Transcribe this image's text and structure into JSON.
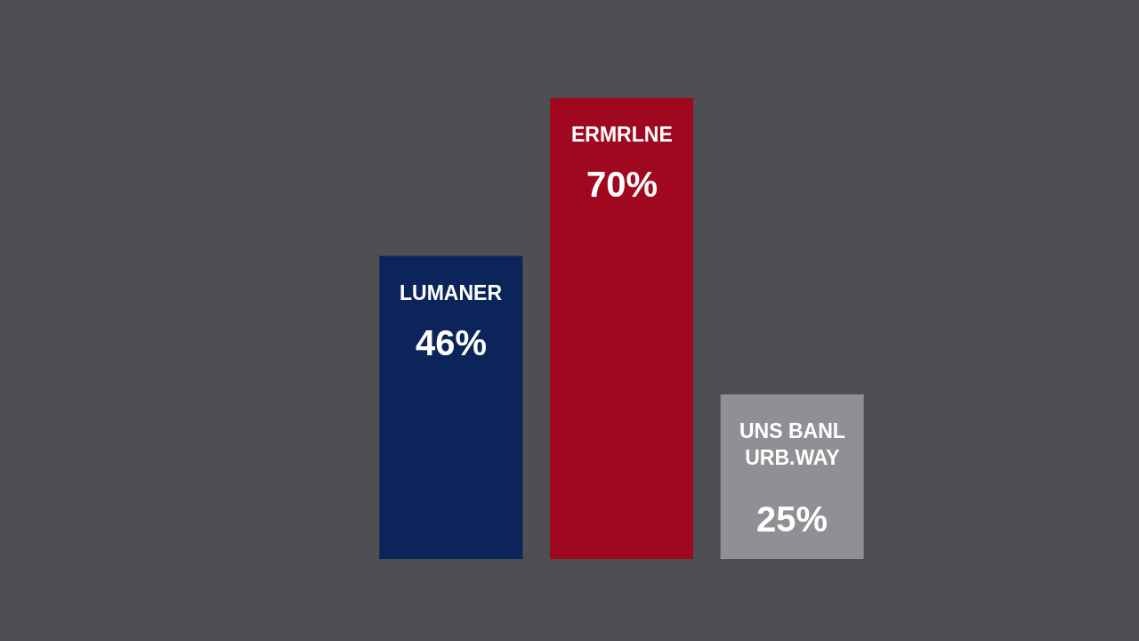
{
  "chart_data": {
    "type": "bar",
    "categories": [
      "LUMANER",
      "ERMRLNE",
      "UNS BANL\nURB.WAY"
    ],
    "values": [
      46,
      70,
      25
    ],
    "value_labels": [
      "46%",
      "70%",
      "25%"
    ],
    "colors": [
      "#0b2459",
      "#a0081f",
      "#8e9094"
    ],
    "tick_labels": false
  }
}
